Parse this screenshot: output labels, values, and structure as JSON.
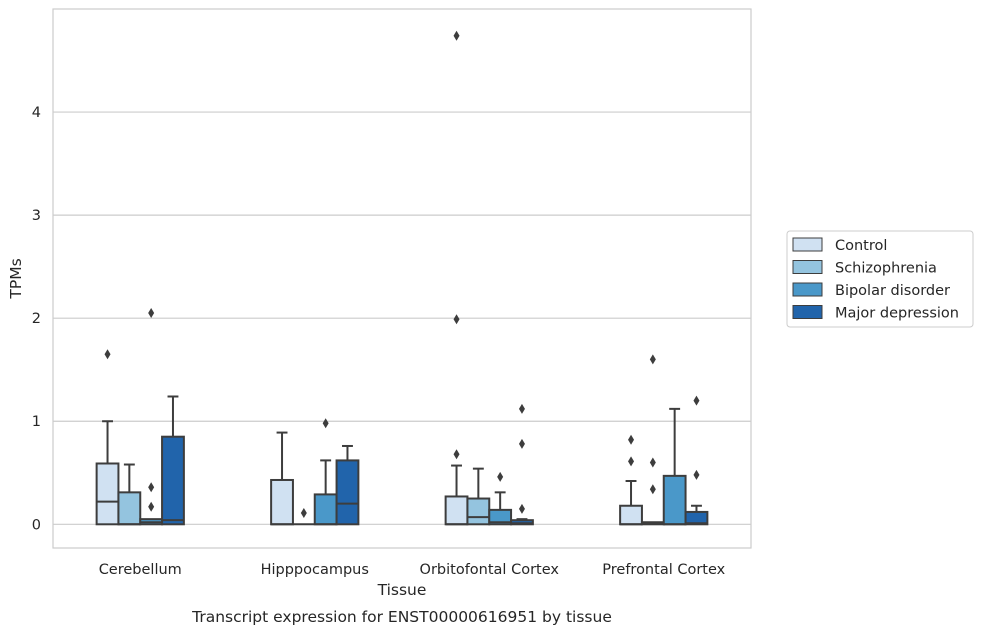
{
  "chart_data": {
    "type": "boxplot",
    "xlabel": "Tissue",
    "ylabel": "TPMs",
    "caption": "Transcript expression for ENST00000616951 by tissue",
    "ylim": [
      -0.23,
      5.0
    ],
    "yticks": [
      0,
      1,
      2,
      3,
      4
    ],
    "grid": "horizontal",
    "legend_position": "right",
    "categories": [
      "Cerebellum",
      "Hipppocampus",
      "Orbitofontal Cortex",
      "Prefrontal Cortex"
    ],
    "series": [
      {
        "name": "Control",
        "color": "#d0e1f2",
        "boxes": [
          {
            "q1": 0,
            "median": 0.22,
            "q3": 0.59,
            "whisker_low": 0,
            "whisker_high": 1.0,
            "outliers": [
              1.65
            ]
          },
          {
            "q1": 0,
            "median": 0,
            "q3": 0.43,
            "whisker_low": 0,
            "whisker_high": 0.89,
            "outliers": []
          },
          {
            "q1": 0,
            "median": 0,
            "q3": 0.27,
            "whisker_low": 0,
            "whisker_high": 0.57,
            "outliers": [
              0.68,
              1.99,
              4.74
            ]
          },
          {
            "q1": 0,
            "median": 0,
            "q3": 0.18,
            "whisker_low": 0,
            "whisker_high": 0.42,
            "outliers": [
              0.61,
              0.82
            ]
          }
        ]
      },
      {
        "name": "Schizophrenia",
        "color": "#94c4df",
        "boxes": [
          {
            "q1": 0,
            "median": 0,
            "q3": 0.31,
            "whisker_low": 0,
            "whisker_high": 0.58,
            "outliers": []
          },
          {
            "q1": 0,
            "median": 0,
            "q3": 0,
            "whisker_low": 0,
            "whisker_high": 0,
            "outliers": [
              0.11
            ]
          },
          {
            "q1": 0,
            "median": 0.07,
            "q3": 0.25,
            "whisker_low": 0,
            "whisker_high": 0.54,
            "outliers": []
          },
          {
            "q1": 0,
            "median": 0.01,
            "q3": 0.02,
            "whisker_low": 0,
            "whisker_high": 0.02,
            "outliers": [
              0.34,
              0.6,
              1.6
            ]
          }
        ]
      },
      {
        "name": "Bipolar disorder",
        "color": "#4a98c9",
        "boxes": [
          {
            "q1": 0,
            "median": 0.02,
            "q3": 0.05,
            "whisker_low": 0,
            "whisker_high": 0.05,
            "outliers": [
              0.17,
              0.36,
              2.05
            ]
          },
          {
            "q1": 0,
            "median": 0,
            "q3": 0.29,
            "whisker_low": 0,
            "whisker_high": 0.62,
            "outliers": [
              0.98
            ]
          },
          {
            "q1": 0,
            "median": 0.02,
            "q3": 0.14,
            "whisker_low": 0,
            "whisker_high": 0.31,
            "outliers": [
              0.46
            ]
          },
          {
            "q1": 0,
            "median": 0,
            "q3": 0.47,
            "whisker_low": 0,
            "whisker_high": 1.12,
            "outliers": []
          }
        ]
      },
      {
        "name": "Major depression",
        "color": "#2164ab",
        "boxes": [
          {
            "q1": 0,
            "median": 0.04,
            "q3": 0.85,
            "whisker_low": 0,
            "whisker_high": 1.24,
            "outliers": []
          },
          {
            "q1": 0,
            "median": 0.2,
            "q3": 0.62,
            "whisker_low": 0,
            "whisker_high": 0.76,
            "outliers": []
          },
          {
            "q1": 0,
            "median": 0.01,
            "q3": 0.04,
            "whisker_low": 0,
            "whisker_high": 0.05,
            "outliers": [
              0.15,
              0.78,
              1.12
            ]
          },
          {
            "q1": 0,
            "median": 0.01,
            "q3": 0.12,
            "whisker_low": 0,
            "whisker_high": 0.18,
            "outliers": [
              0.48,
              1.2
            ]
          }
        ]
      }
    ]
  }
}
